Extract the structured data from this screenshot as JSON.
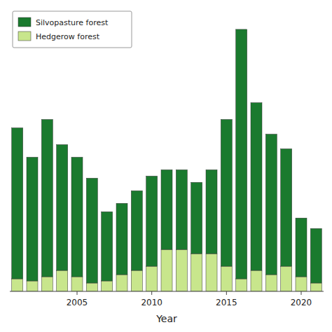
{
  "chart_data": {
    "type": "bar",
    "stacked": true,
    "xlabel": "Year",
    "categories": [
      null,
      null,
      null,
      null,
      "2005",
      null,
      null,
      null,
      null,
      "2010",
      null,
      null,
      null,
      null,
      "2015",
      null,
      null,
      null,
      null,
      "2020",
      null
    ],
    "series": [
      {
        "name": "Hedgerow forest",
        "color": "#c8e68c",
        "values": [
          0.6,
          0.5,
          0.7,
          1.0,
          0.7,
          0.4,
          0.5,
          0.8,
          1.0,
          1.2,
          2.0,
          2.0,
          1.8,
          1.8,
          1.2,
          0.6,
          1.0,
          0.8,
          1.2,
          0.7,
          0.4
        ]
      },
      {
        "name": "Silvopasture forest",
        "color": "#1a7a2e",
        "values": [
          7.2,
          5.9,
          7.5,
          6.0,
          5.7,
          5.0,
          3.3,
          3.4,
          3.8,
          4.3,
          3.8,
          3.8,
          3.4,
          4.0,
          7.0,
          11.9,
          8.0,
          6.7,
          5.6,
          2.8,
          2.6
        ]
      }
    ],
    "ylim": [
      0,
      13.5
    ],
    "tick_labels": "x",
    "legend": "upper left",
    "grid": false
  }
}
